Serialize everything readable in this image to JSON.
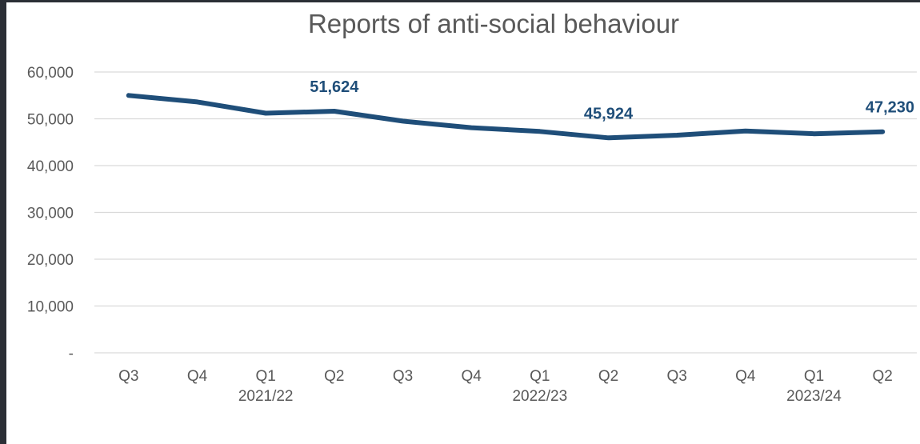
{
  "chart_data": {
    "type": "line",
    "title": "Reports of anti-social behaviour",
    "xlabel": "",
    "ylabel": "",
    "categories": [
      "Q3",
      "Q4",
      "Q1",
      "Q2",
      "Q3",
      "Q4",
      "Q1",
      "Q2",
      "Q3",
      "Q4",
      "Q1",
      "Q2"
    ],
    "year_labels": [
      {
        "index": 2,
        "text": "2021/22"
      },
      {
        "index": 6,
        "text": "2022/23"
      },
      {
        "index": 10,
        "text": "2023/24"
      }
    ],
    "series": [
      {
        "color": "#1f4e79",
        "values": [
          55000,
          53600,
          51200,
          51624,
          49500,
          48100,
          47300,
          45924,
          46500,
          47400,
          46800,
          47230
        ]
      }
    ],
    "data_labels": [
      {
        "index": 3,
        "text": "51,624"
      },
      {
        "index": 7,
        "text": "45,924"
      },
      {
        "index": 11,
        "text": "47,230"
      }
    ],
    "ylim": [
      0,
      60000
    ],
    "yticks": [
      0,
      10000,
      20000,
      30000,
      40000,
      50000,
      60000
    ],
    "ytick_labels": [
      "-",
      "10,000",
      "20,000",
      "30,000",
      "40,000",
      "50,000",
      "60,000"
    ],
    "grid": true,
    "legend": "none"
  }
}
